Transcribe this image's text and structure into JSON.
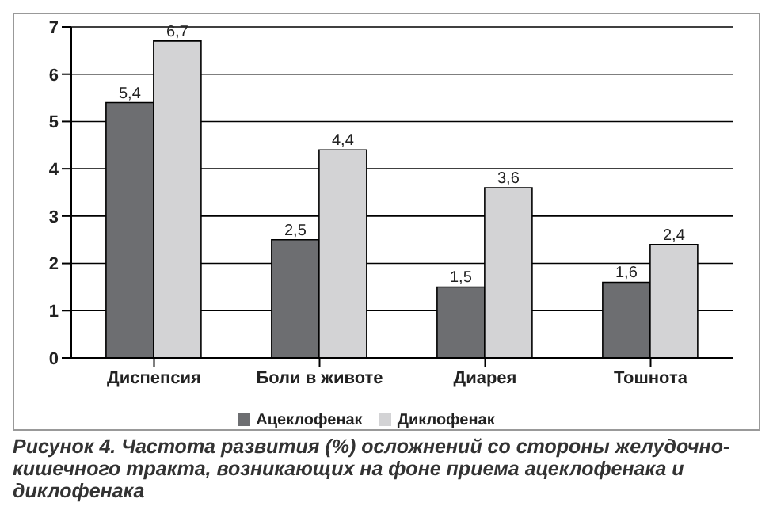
{
  "chart_data": {
    "type": "bar",
    "categories": [
      "Диспепсия",
      "Боли в животе",
      "Диарея",
      "Тошнота"
    ],
    "series": [
      {
        "name": "Ацеклофенак",
        "color": "#6d6e71",
        "values": [
          5.4,
          2.5,
          1.5,
          1.6
        ],
        "value_labels": [
          "5,4",
          "2,5",
          "1,5",
          "1,6"
        ]
      },
      {
        "name": "Диклофенак",
        "color": "#d3d3d5",
        "values": [
          6.7,
          4.4,
          3.6,
          2.4
        ],
        "value_labels": [
          "6,7",
          "4,4",
          "3,6",
          "2,4"
        ]
      }
    ],
    "ylim": [
      0,
      7
    ],
    "yticks": [
      0,
      1,
      2,
      3,
      4,
      5,
      6,
      7
    ],
    "grid": "y",
    "legend": "bottom",
    "annotations": [
      "Рисунок 4. Частота развития (%) осложнений со стороны желудочно-кишечного тракта, возникающих на фоне приема ацеклофенака и диклофенака"
    ]
  }
}
